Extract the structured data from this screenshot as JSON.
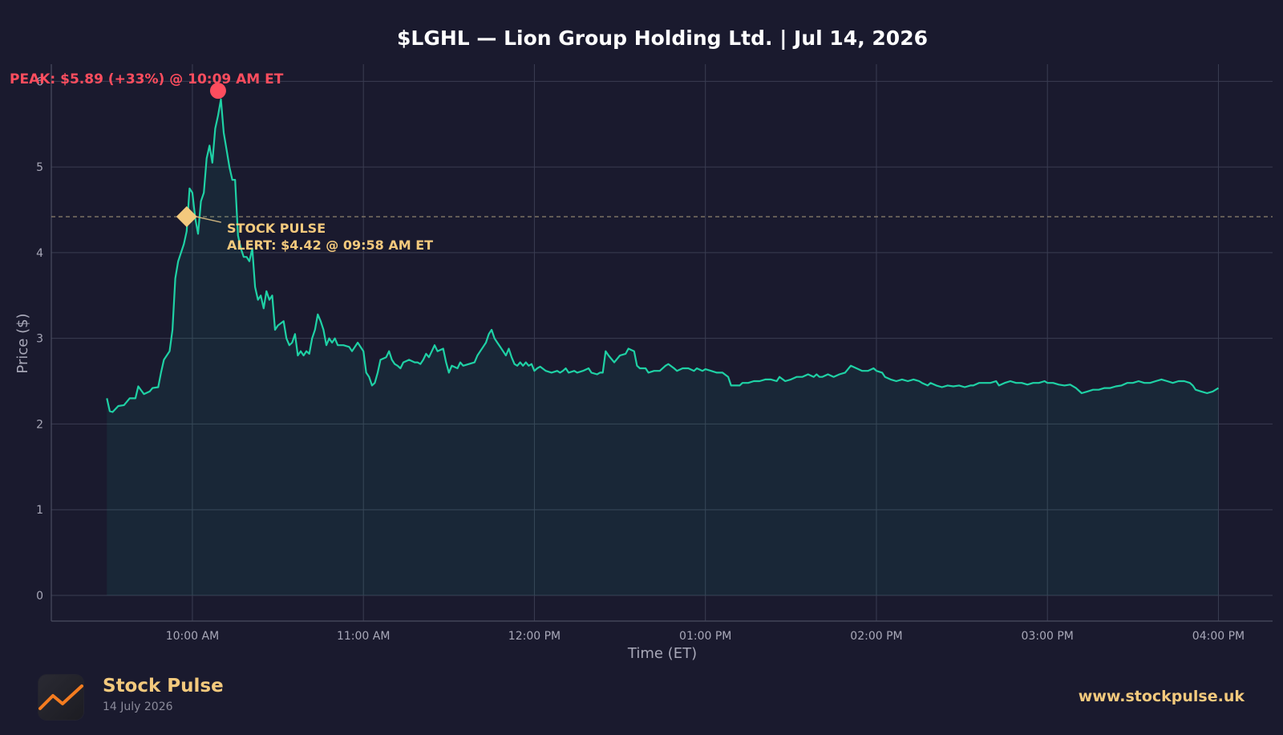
{
  "chart_data": {
    "type": "area",
    "title": "$LGHL — Lion Group Holding Ltd.  |  Jul 14, 2026",
    "xlabel": "Time (ET)",
    "ylabel": "Price ($)",
    "ylim": [
      -0.3,
      6.2
    ],
    "y_ticks": [
      0,
      1,
      2,
      3,
      4,
      5,
      6
    ],
    "x_ticks": [
      "10:00 AM",
      "11:00 AM",
      "12:00 PM",
      "01:00 PM",
      "02:00 PM",
      "03:00 PM",
      "04:00 PM"
    ],
    "x_tick_minutes": [
      600,
      660,
      720,
      780,
      840,
      900,
      960
    ],
    "xlim_minutes": [
      550.5,
      979
    ],
    "grid": true,
    "series": [
      {
        "color": "#1fd1a5",
        "points": [
          [
            570,
            2.3
          ],
          [
            571,
            2.15
          ],
          [
            572,
            2.14
          ],
          [
            574,
            2.21
          ],
          [
            576,
            2.22
          ],
          [
            578,
            2.3
          ],
          [
            580,
            2.3
          ],
          [
            581,
            2.44
          ],
          [
            583,
            2.35
          ],
          [
            585,
            2.38
          ],
          [
            586,
            2.42
          ],
          [
            588,
            2.43
          ],
          [
            589,
            2.6
          ],
          [
            590,
            2.75
          ],
          [
            592,
            2.85
          ],
          [
            593,
            3.1
          ],
          [
            594,
            3.7
          ],
          [
            595,
            3.9
          ],
          [
            597,
            4.1
          ],
          [
            598,
            4.25
          ],
          [
            599,
            4.75
          ],
          [
            600,
            4.7
          ],
          [
            601,
            4.4
          ],
          [
            602,
            4.22
          ],
          [
            603,
            4.6
          ],
          [
            604,
            4.7
          ],
          [
            605,
            5.1
          ],
          [
            606,
            5.25
          ],
          [
            607,
            5.05
          ],
          [
            608,
            5.45
          ],
          [
            609,
            5.6
          ],
          [
            610,
            5.79
          ],
          [
            611,
            5.4
          ],
          [
            612,
            5.2
          ],
          [
            613,
            5.0
          ],
          [
            614,
            4.85
          ],
          [
            615,
            4.85
          ],
          [
            616,
            4.2
          ],
          [
            617,
            4.05
          ],
          [
            618,
            3.95
          ],
          [
            619,
            3.95
          ],
          [
            620,
            3.9
          ],
          [
            621,
            4.05
          ],
          [
            622,
            3.6
          ],
          [
            623,
            3.45
          ],
          [
            624,
            3.5
          ],
          [
            625,
            3.35
          ],
          [
            626,
            3.55
          ],
          [
            627,
            3.45
          ],
          [
            628,
            3.5
          ],
          [
            629,
            3.1
          ],
          [
            630,
            3.15
          ],
          [
            632,
            3.2
          ],
          [
            633,
            3.0
          ],
          [
            634,
            2.92
          ],
          [
            635,
            2.95
          ],
          [
            636,
            3.05
          ],
          [
            637,
            2.8
          ],
          [
            638,
            2.85
          ],
          [
            639,
            2.8
          ],
          [
            640,
            2.85
          ],
          [
            641,
            2.82
          ],
          [
            642,
            3.0
          ],
          [
            643,
            3.1
          ],
          [
            644,
            3.28
          ],
          [
            645,
            3.2
          ],
          [
            646,
            3.1
          ],
          [
            647,
            2.92
          ],
          [
            648,
            3.0
          ],
          [
            649,
            2.95
          ],
          [
            650,
            3.0
          ],
          [
            651,
            2.92
          ],
          [
            653,
            2.92
          ],
          [
            655,
            2.9
          ],
          [
            656,
            2.85
          ],
          [
            658,
            2.95
          ],
          [
            660,
            2.85
          ],
          [
            661,
            2.6
          ],
          [
            662,
            2.55
          ],
          [
            663,
            2.45
          ],
          [
            664,
            2.48
          ],
          [
            665,
            2.6
          ],
          [
            666,
            2.75
          ],
          [
            668,
            2.78
          ],
          [
            669,
            2.85
          ],
          [
            670,
            2.75
          ],
          [
            671,
            2.7
          ],
          [
            672,
            2.68
          ],
          [
            673,
            2.65
          ],
          [
            674,
            2.72
          ],
          [
            676,
            2.75
          ],
          [
            678,
            2.72
          ],
          [
            679,
            2.72
          ],
          [
            680,
            2.7
          ],
          [
            681,
            2.75
          ],
          [
            682,
            2.82
          ],
          [
            683,
            2.78
          ],
          [
            684,
            2.85
          ],
          [
            685,
            2.92
          ],
          [
            686,
            2.85
          ],
          [
            688,
            2.88
          ],
          [
            689,
            2.72
          ],
          [
            690,
            2.6
          ],
          [
            691,
            2.68
          ],
          [
            693,
            2.65
          ],
          [
            694,
            2.72
          ],
          [
            695,
            2.68
          ],
          [
            697,
            2.7
          ],
          [
            699,
            2.72
          ],
          [
            700,
            2.8
          ],
          [
            701,
            2.85
          ],
          [
            702,
            2.9
          ],
          [
            703,
            2.95
          ],
          [
            704,
            3.05
          ],
          [
            705,
            3.1
          ],
          [
            706,
            3.0
          ],
          [
            707,
            2.95
          ],
          [
            708,
            2.9
          ],
          [
            709,
            2.85
          ],
          [
            710,
            2.8
          ],
          [
            711,
            2.88
          ],
          [
            712,
            2.78
          ],
          [
            713,
            2.7
          ],
          [
            714,
            2.68
          ],
          [
            715,
            2.72
          ],
          [
            716,
            2.68
          ],
          [
            717,
            2.72
          ],
          [
            718,
            2.68
          ],
          [
            719,
            2.7
          ],
          [
            720,
            2.62
          ],
          [
            721,
            2.65
          ],
          [
            722,
            2.67
          ],
          [
            724,
            2.62
          ],
          [
            726,
            2.6
          ],
          [
            728,
            2.62
          ],
          [
            729,
            2.6
          ],
          [
            730,
            2.62
          ],
          [
            731,
            2.65
          ],
          [
            732,
            2.6
          ],
          [
            734,
            2.62
          ],
          [
            735,
            2.6
          ],
          [
            737,
            2.62
          ],
          [
            739,
            2.65
          ],
          [
            740,
            2.6
          ],
          [
            742,
            2.58
          ],
          [
            743,
            2.6
          ],
          [
            744,
            2.6
          ],
          [
            745,
            2.85
          ],
          [
            746,
            2.8
          ],
          [
            748,
            2.72
          ],
          [
            750,
            2.8
          ],
          [
            752,
            2.82
          ],
          [
            753,
            2.88
          ],
          [
            755,
            2.85
          ],
          [
            756,
            2.68
          ],
          [
            757,
            2.65
          ],
          [
            759,
            2.65
          ],
          [
            760,
            2.6
          ],
          [
            762,
            2.62
          ],
          [
            764,
            2.62
          ],
          [
            766,
            2.68
          ],
          [
            767,
            2.7
          ],
          [
            769,
            2.65
          ],
          [
            770,
            2.62
          ],
          [
            772,
            2.65
          ],
          [
            774,
            2.65
          ],
          [
            776,
            2.62
          ],
          [
            777,
            2.65
          ],
          [
            779,
            2.62
          ],
          [
            780,
            2.64
          ],
          [
            782,
            2.62
          ],
          [
            784,
            2.6
          ],
          [
            786,
            2.6
          ],
          [
            788,
            2.55
          ],
          [
            789,
            2.45
          ],
          [
            790,
            2.45
          ],
          [
            792,
            2.45
          ],
          [
            793,
            2.48
          ],
          [
            795,
            2.48
          ],
          [
            797,
            2.5
          ],
          [
            799,
            2.5
          ],
          [
            801,
            2.52
          ],
          [
            803,
            2.52
          ],
          [
            805,
            2.5
          ],
          [
            806,
            2.55
          ],
          [
            808,
            2.5
          ],
          [
            810,
            2.52
          ],
          [
            812,
            2.55
          ],
          [
            814,
            2.55
          ],
          [
            816,
            2.58
          ],
          [
            818,
            2.55
          ],
          [
            819,
            2.58
          ],
          [
            820,
            2.55
          ],
          [
            821,
            2.55
          ],
          [
            823,
            2.58
          ],
          [
            825,
            2.55
          ],
          [
            827,
            2.58
          ],
          [
            829,
            2.6
          ],
          [
            831,
            2.68
          ],
          [
            833,
            2.65
          ],
          [
            835,
            2.62
          ],
          [
            837,
            2.62
          ],
          [
            839,
            2.65
          ],
          [
            840,
            2.62
          ],
          [
            842,
            2.6
          ],
          [
            843,
            2.55
          ],
          [
            845,
            2.52
          ],
          [
            847,
            2.5
          ],
          [
            849,
            2.52
          ],
          [
            851,
            2.5
          ],
          [
            853,
            2.52
          ],
          [
            855,
            2.5
          ],
          [
            856,
            2.48
          ],
          [
            858,
            2.45
          ],
          [
            859,
            2.48
          ],
          [
            861,
            2.45
          ],
          [
            863,
            2.43
          ],
          [
            865,
            2.45
          ],
          [
            867,
            2.44
          ],
          [
            869,
            2.45
          ],
          [
            871,
            2.43
          ],
          [
            873,
            2.45
          ],
          [
            874,
            2.45
          ],
          [
            876,
            2.48
          ],
          [
            878,
            2.48
          ],
          [
            880,
            2.48
          ],
          [
            882,
            2.5
          ],
          [
            883,
            2.45
          ],
          [
            885,
            2.48
          ],
          [
            887,
            2.5
          ],
          [
            889,
            2.48
          ],
          [
            891,
            2.48
          ],
          [
            893,
            2.46
          ],
          [
            895,
            2.48
          ],
          [
            897,
            2.48
          ],
          [
            899,
            2.5
          ],
          [
            900,
            2.48
          ],
          [
            902,
            2.48
          ],
          [
            904,
            2.46
          ],
          [
            906,
            2.45
          ],
          [
            908,
            2.46
          ],
          [
            910,
            2.42
          ],
          [
            912,
            2.36
          ],
          [
            914,
            2.38
          ],
          [
            916,
            2.4
          ],
          [
            918,
            2.4
          ],
          [
            920,
            2.42
          ],
          [
            922,
            2.42
          ],
          [
            924,
            2.44
          ],
          [
            926,
            2.45
          ],
          [
            928,
            2.48
          ],
          [
            930,
            2.48
          ],
          [
            932,
            2.5
          ],
          [
            934,
            2.48
          ],
          [
            936,
            2.48
          ],
          [
            938,
            2.5
          ],
          [
            940,
            2.52
          ],
          [
            942,
            2.5
          ],
          [
            944,
            2.48
          ],
          [
            946,
            2.5
          ],
          [
            948,
            2.5
          ],
          [
            950,
            2.48
          ],
          [
            951,
            2.45
          ],
          [
            952,
            2.4
          ],
          [
            954,
            2.38
          ],
          [
            956,
            2.36
          ],
          [
            958,
            2.38
          ],
          [
            960,
            2.42
          ]
        ]
      }
    ],
    "baseline": 4.42,
    "annotations": {
      "peak": {
        "label": "PEAK: $5.89 (+33%) @ 10:09 AM ET",
        "x_minutes": 609,
        "y": 5.89
      },
      "alert": {
        "line1": "STOCK PULSE",
        "line2": "ALERT: $4.42 @ 09:58 AM ET",
        "x_minutes": 598,
        "y": 4.42
      }
    }
  },
  "footer": {
    "brand": "Stock Pulse",
    "date": "14 July 2026",
    "url": "www.stockpulse.uk",
    "icon": "trend-line-icon"
  },
  "colors": {
    "background": "#1a1a2e",
    "line": "#1fd1a5",
    "peak": "#ff4d5e",
    "alert": "#f3c97d",
    "grid": "#3a3d52",
    "axis_text": "#a8a8b8"
  }
}
